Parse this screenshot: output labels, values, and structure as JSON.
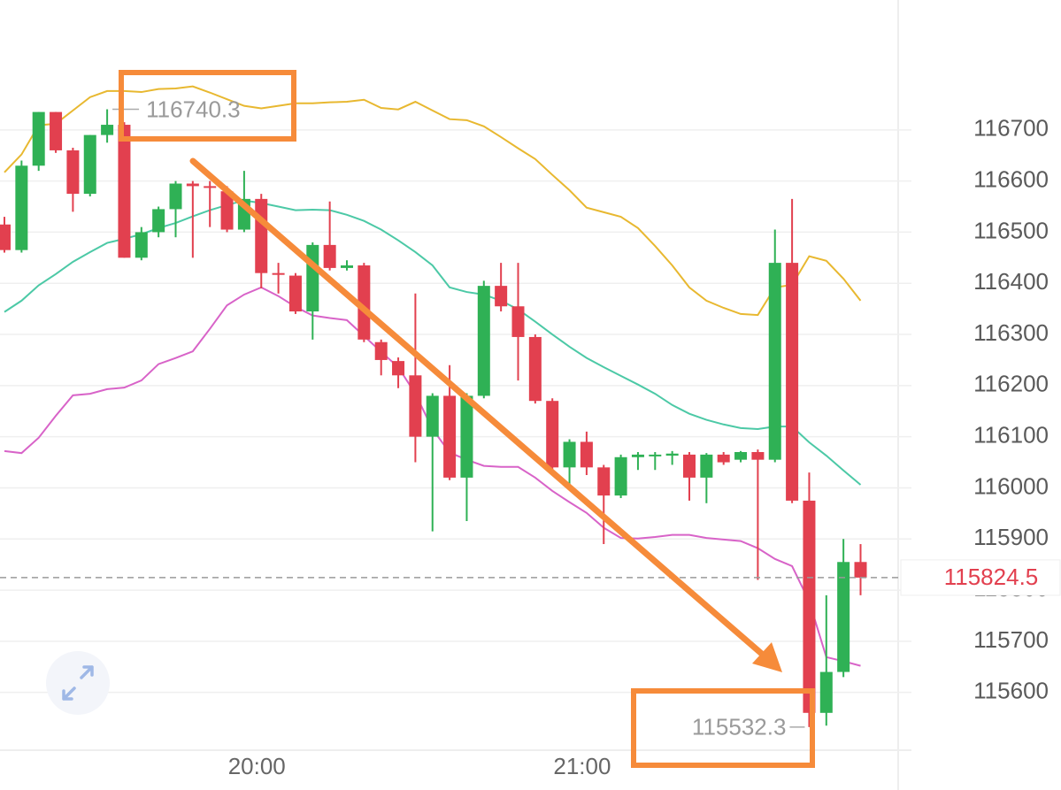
{
  "chart_data": {
    "type": "candlestick",
    "categories": [
      null,
      null,
      null,
      null,
      null,
      null,
      null,
      null,
      null,
      null,
      null,
      null,
      null,
      null,
      null,
      "20:00",
      null,
      null,
      null,
      null,
      null,
      null,
      null,
      null,
      null,
      null,
      null,
      null,
      null,
      null,
      null,
      null,
      null,
      null,
      "21:00",
      null,
      null,
      null,
      null,
      null,
      null,
      null,
      null,
      null,
      null,
      null,
      null,
      null,
      null,
      null,
      null
    ],
    "open": [
      116515,
      116465,
      116630,
      116735,
      116660,
      116575,
      116690,
      116710,
      116450,
      116500,
      116545,
      116595,
      116590,
      116580,
      116505,
      116565,
      116420,
      116415,
      116345,
      116475,
      116430,
      116435,
      116285,
      116248,
      116220,
      116100,
      116180,
      116020,
      116180,
      116395,
      116355,
      116295,
      116170,
      116040,
      116090,
      116040,
      115985,
      116060,
      116062,
      116063,
      116065,
      116020,
      116065,
      116055,
      116070,
      116055,
      116440,
      115975,
      115560,
      115640,
      115855
    ],
    "high": [
      116530,
      116640,
      116735,
      116735,
      116665,
      116690,
      116740.3,
      116715,
      116510,
      116550,
      116600,
      116600,
      116600,
      116590,
      116620,
      116575,
      116440,
      116420,
      116480,
      116560,
      116445,
      116440,
      116290,
      116255,
      116380,
      116185,
      116240,
      116185,
      116405,
      116440,
      116440,
      116300,
      116175,
      116095,
      116110,
      116045,
      116065,
      116070,
      116070,
      116072,
      116070,
      116068,
      116070,
      116072,
      116075,
      116505,
      116565,
      116030,
      115790,
      115900,
      115890
    ],
    "low": [
      116460,
      116460,
      116620,
      116655,
      116540,
      116570,
      116675,
      116450,
      116445,
      116490,
      116490,
      116450,
      116510,
      116500,
      116500,
      116390,
      116380,
      116340,
      116290,
      116425,
      116425,
      116285,
      116220,
      116195,
      116050,
      115915,
      116015,
      115935,
      116175,
      116345,
      116210,
      116165,
      116035,
      116005,
      116025,
      115890,
      115980,
      116035,
      116035,
      116045,
      115975,
      115970,
      116045,
      116050,
      115820,
      116050,
      115970,
      115532.3,
      115535,
      115630,
      115790
    ],
    "close": [
      116465,
      116630,
      116735,
      116660,
      116575,
      116690,
      116710,
      116450,
      116500,
      116545,
      116595,
      116590,
      116588,
      116505,
      116565,
      116420,
      116418,
      116345,
      116475,
      116430,
      116435,
      116290,
      116250,
      116220,
      116100,
      116180,
      116020,
      116180,
      116395,
      116355,
      116295,
      116170,
      116040,
      116090,
      116040,
      115985,
      116060,
      116065,
      116065,
      116067,
      116020,
      116065,
      116050,
      116070,
      116055,
      116440,
      115975,
      115560,
      115640,
      115855,
      115824.5
    ],
    "up_color": "#2fb155",
    "down_color": "#e2404f",
    "lines": [
      {
        "color": "#e8b830",
        "values": [
          116617,
          116652,
          116709,
          116712,
          116738,
          116764,
          116776,
          116776,
          116774,
          116780,
          116781,
          116785,
          116773,
          116760,
          116747,
          116742,
          116747,
          116752,
          116752,
          116754,
          116755,
          116759,
          116743,
          116740,
          116755,
          116738,
          116721,
          116719,
          116707,
          116686,
          116664,
          116643,
          116612,
          116582,
          116548,
          116539,
          116530,
          116508,
          116473,
          116435,
          116392,
          116366,
          116352,
          116340,
          116338,
          116392,
          116397,
          116453,
          116444,
          116409,
          116366
        ]
      },
      {
        "color": "#4cc9a6",
        "values": [
          116344,
          116366,
          116396,
          116418,
          116442,
          116461,
          116479,
          116487,
          116496,
          116508,
          116518,
          116531,
          116543,
          116553,
          116562,
          116557,
          116550,
          116543,
          116544,
          116543,
          116534,
          116522,
          116505,
          116484,
          116461,
          116435,
          116392,
          116383,
          116378,
          116366,
          116349,
          116325,
          116300,
          116276,
          116254,
          116236,
          116219,
          116202,
          116184,
          116162,
          116145,
          116133,
          116124,
          116117,
          116115,
          116120,
          116120,
          116089,
          116063,
          116034,
          116006
        ]
      },
      {
        "color": "#d863c8",
        "values": [
          116072,
          116068,
          116098,
          116141,
          116181,
          116184,
          116193,
          116196,
          116210,
          116242,
          116254,
          116267,
          116311,
          116357,
          116378,
          116392,
          116375,
          116354,
          116337,
          116332,
          116328,
          116297,
          116266,
          116236,
          116184,
          116115,
          116069,
          116055,
          116043,
          116041,
          116041,
          116020,
          115994,
          115972,
          115951,
          115922,
          115902,
          115901,
          115904,
          115908,
          115908,
          115902,
          115899,
          115896,
          115882,
          115861,
          115847,
          115778,
          115669,
          115661,
          115652
        ]
      }
    ],
    "ylim": [
      115487,
      116954
    ],
    "yticks": [
      115600,
      115700,
      115800,
      115900,
      116000,
      116100,
      116200,
      116300,
      116400,
      116500,
      116600,
      116700
    ],
    "grid": true,
    "high_label": 116740.3,
    "low_label": 115532.3,
    "last_price": 115824.5,
    "last_price_color": "#e2404f"
  }
}
